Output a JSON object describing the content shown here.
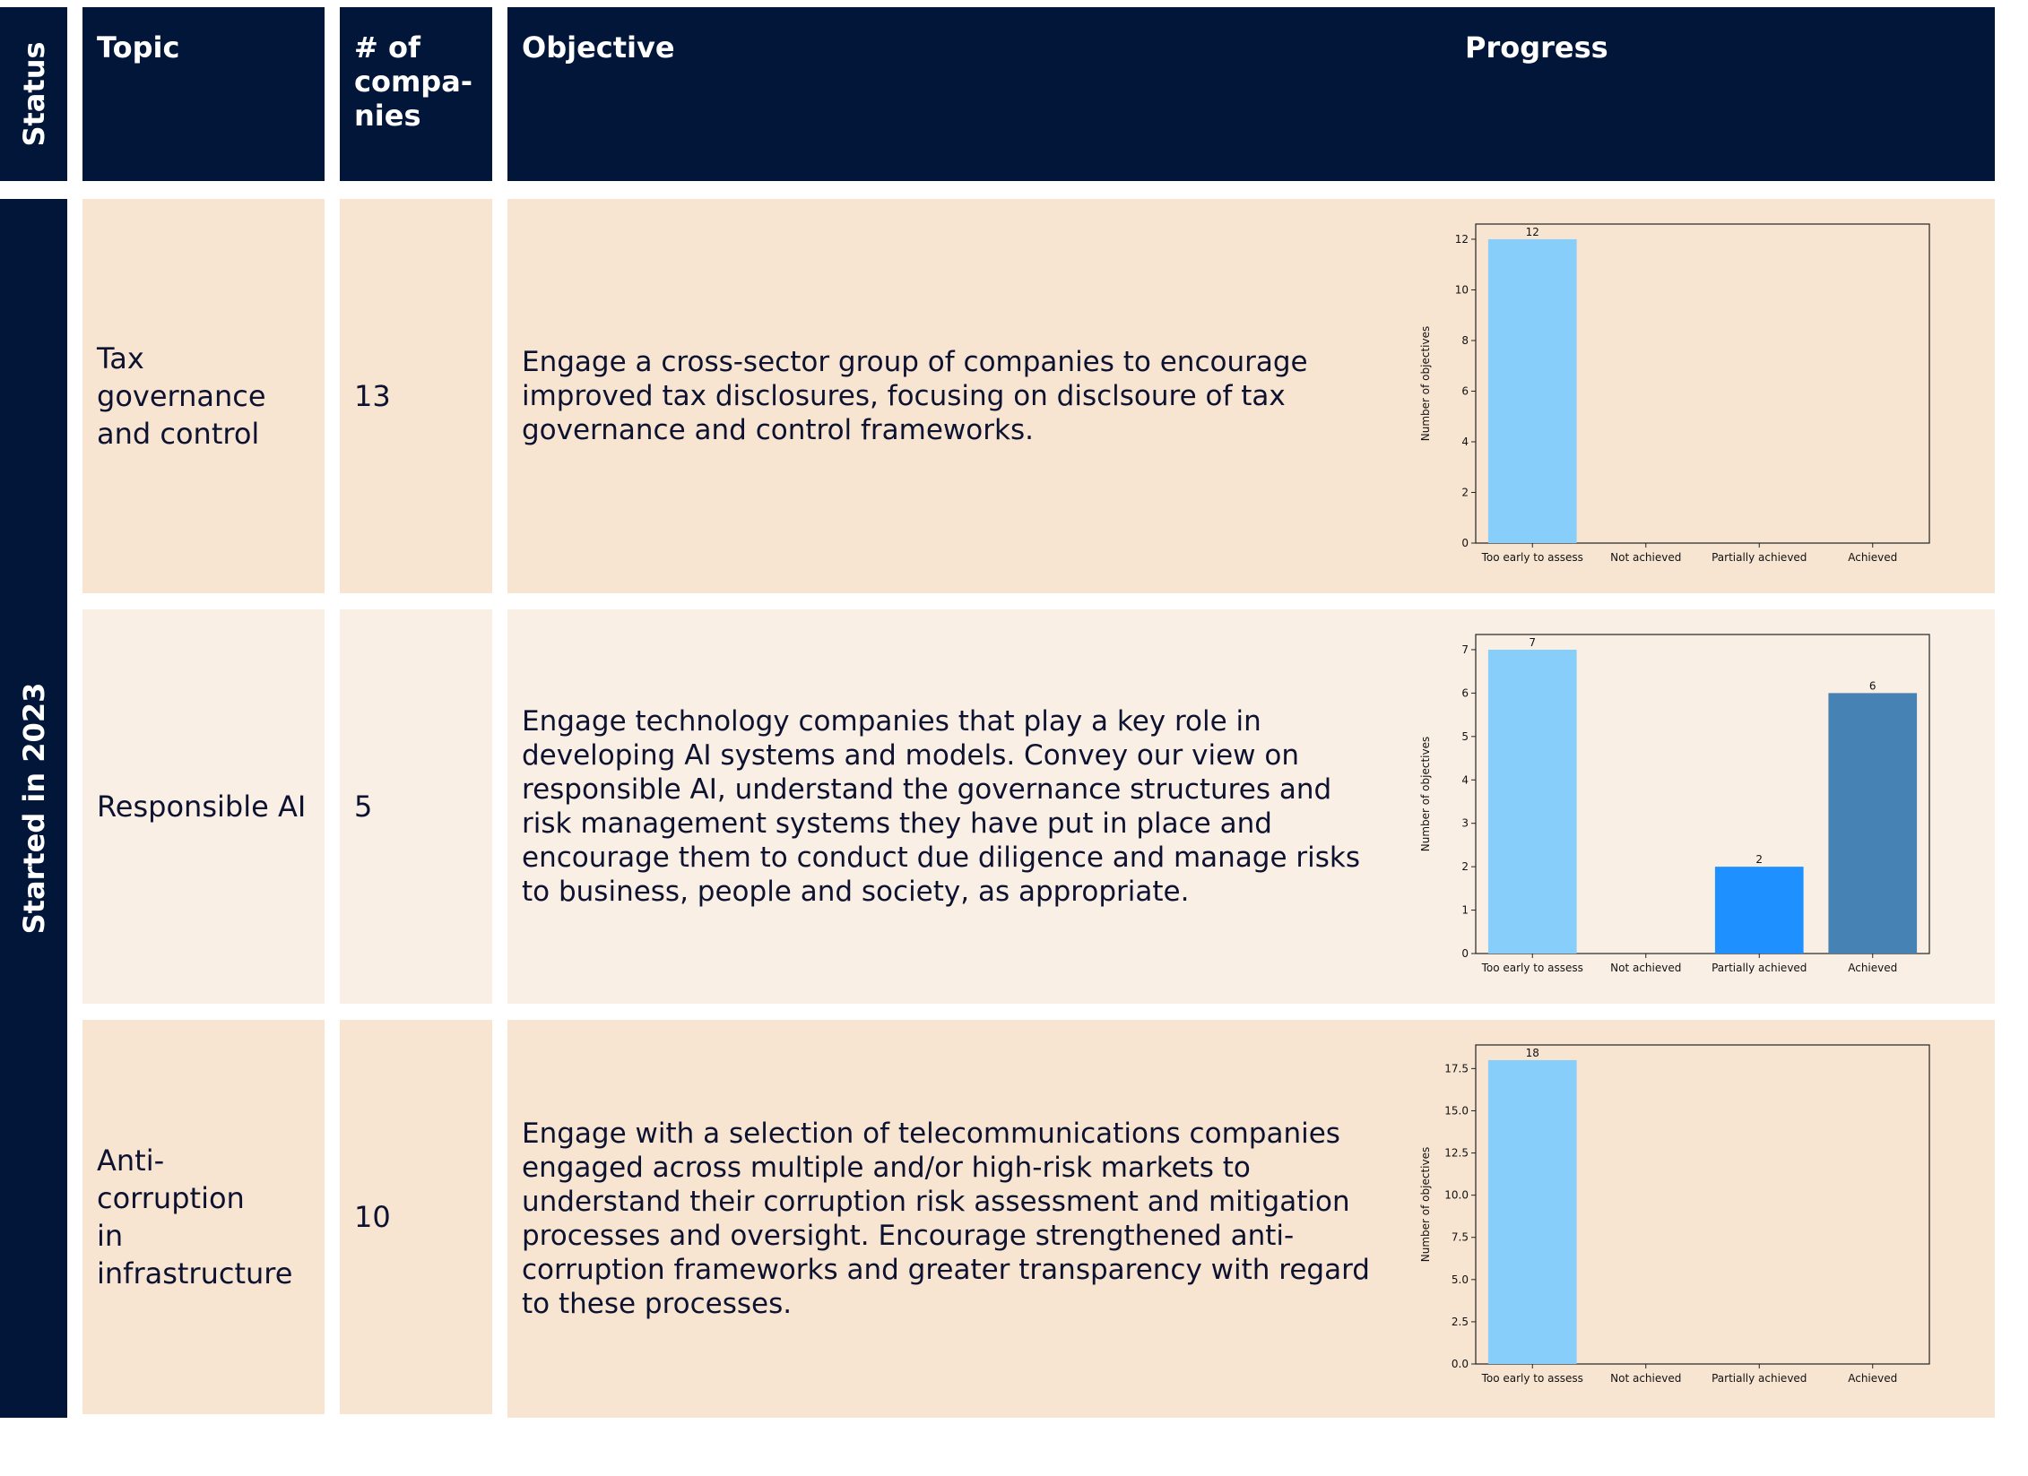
{
  "header": {
    "status": "Status",
    "topic": "Topic",
    "companies": "# of compa-nies",
    "companies_lines": [
      "# of",
      "compa-",
      "nies"
    ],
    "objective": "Objective",
    "progress": "Progress"
  },
  "status_group": "Started in 2023",
  "rows": [
    {
      "topic": "Tax governance and control",
      "topic_lines": [
        "Tax governance",
        "and control"
      ],
      "companies": "13",
      "objective": "Engage a cross-sector group of companies to encourage improved tax disclosures, focusing on disclsoure of tax governance and control frameworks."
    },
    {
      "topic": "Responsible AI",
      "topic_lines": [
        "Responsible AI"
      ],
      "companies": "5",
      "objective": "Engage technology companies that play a key role in developing AI systems and models. Convey our view on responsible AI, understand the governance structures and risk management systems they have put in place and encourage them to conduct due diligence and manage risks to business, people and society, as appropriate."
    },
    {
      "topic": "Anti-corruption in infrastructure",
      "topic_lines": [
        "Anti-corruption",
        "in infrastructure"
      ],
      "companies": "10",
      "objective": "Engage with a selection of telecommunications companies engaged across multiple and/or high-risk markets to understand their corruption risk assessment and mitigation processes and oversight. Encourage strengthened anti-corruption frameworks and greater transparency with regard to these processes."
    }
  ],
  "colors": {
    "navy": "#011638",
    "row_a": "#f7e5d2",
    "row_b": "#faefe4",
    "too_early": "#87cefa",
    "not_achieved": "#4a90d9",
    "partially": "#1e90ff",
    "achieved": "#4682b4"
  },
  "chart_data": [
    {
      "type": "bar",
      "title": "",
      "xlabel": "",
      "ylabel": "Number of objectives",
      "categories": [
        "Too early to assess",
        "Not achieved",
        "Partially achieved",
        "Achieved"
      ],
      "values": [
        12,
        0,
        0,
        0
      ],
      "data_labels": [
        "12",
        "",
        "",
        ""
      ],
      "ylim": [
        0,
        12.6
      ],
      "yticks": [
        0,
        2,
        4,
        6,
        8,
        10,
        12
      ],
      "ytick_labels": [
        "0",
        "2",
        "4",
        "6",
        "8",
        "10",
        "12"
      ],
      "bar_colors": [
        "#87cefa",
        "#4a90d9",
        "#1e90ff",
        "#4682b4"
      ]
    },
    {
      "type": "bar",
      "title": "",
      "xlabel": "",
      "ylabel": "Number of objectives",
      "categories": [
        "Too early to assess",
        "Not achieved",
        "Partially achieved",
        "Achieved"
      ],
      "values": [
        7,
        0,
        2,
        6
      ],
      "data_labels": [
        "7",
        "",
        "2",
        "6"
      ],
      "ylim": [
        0,
        7.35
      ],
      "yticks": [
        0,
        1,
        2,
        3,
        4,
        5,
        6,
        7
      ],
      "ytick_labels": [
        "0",
        "1",
        "2",
        "3",
        "4",
        "5",
        "6",
        "7"
      ],
      "bar_colors": [
        "#87cefa",
        "#4a90d9",
        "#1e90ff",
        "#4682b4"
      ]
    },
    {
      "type": "bar",
      "title": "",
      "xlabel": "",
      "ylabel": "Number of objectives",
      "categories": [
        "Too early to assess",
        "Not achieved",
        "Partially achieved",
        "Achieved"
      ],
      "values": [
        18,
        0,
        0,
        0
      ],
      "data_labels": [
        "18",
        "",
        "",
        ""
      ],
      "ylim": [
        0,
        18.9
      ],
      "yticks": [
        0,
        2.5,
        5,
        7.5,
        10,
        12.5,
        15,
        17.5
      ],
      "ytick_labels": [
        "0.0",
        "2.5",
        "5.0",
        "7.5",
        "10.0",
        "12.5",
        "15.0",
        "17.5"
      ],
      "bar_colors": [
        "#87cefa",
        "#4a90d9",
        "#1e90ff",
        "#4682b4"
      ]
    }
  ]
}
